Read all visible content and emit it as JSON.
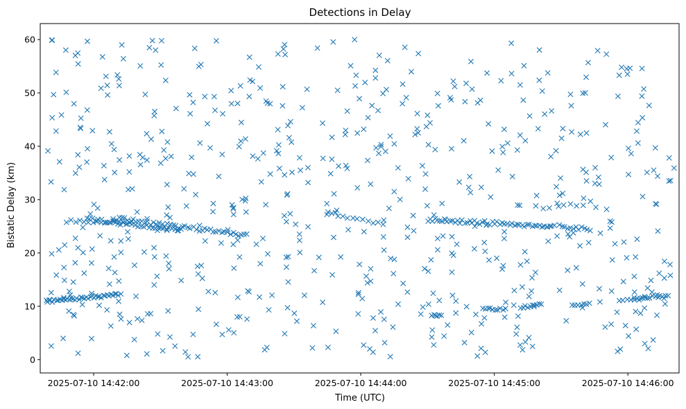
{
  "chart_data": {
    "type": "scatter",
    "title": "Detections in Delay",
    "xlabel": "Time (UTC)",
    "ylabel": "Bistatic Delay (km)",
    "marker": "x",
    "color": "#1f77b4",
    "grid": false,
    "x_range": [
      "2025-07-10 14:41:36",
      "2025-07-10 14:46:23"
    ],
    "ylim": [
      -2.5,
      63
    ],
    "x_ticks": [
      "2025-07-10 14:42:00",
      "2025-07-10 14:43:00",
      "2025-07-10 14:44:00",
      "2025-07-10 14:45:00",
      "2025-07-10 14:46:00"
    ],
    "y_ticks": [
      0,
      10,
      20,
      30,
      40,
      50,
      60
    ],
    "series": [
      {
        "tracks": [
          {
            "start": "2025-07-10 14:41:39",
            "end": "2025-07-10 14:42:12",
            "y0": 10.9,
            "y1": 12.2,
            "n": 40,
            "jitter": 0.25
          },
          {
            "start": "2025-07-10 14:41:48",
            "end": "2025-07-10 14:42:17",
            "y0": 26.0,
            "y1": 25.7,
            "n": 16,
            "jitter": 0.3
          },
          {
            "start": "2025-07-10 14:41:57",
            "end": "2025-07-10 14:42:39",
            "y0": 26.3,
            "y1": 24.3,
            "n": 34,
            "jitter": 0.3
          },
          {
            "start": "2025-07-10 14:42:09",
            "end": "2025-07-10 14:43:09",
            "y0": 26.5,
            "y1": 23.3,
            "n": 48,
            "jitter": 0.35
          },
          {
            "start": "2025-07-10 14:43:45",
            "end": "2025-07-10 14:44:10",
            "y0": 27.5,
            "y1": 25.6,
            "n": 12,
            "jitter": 0.4
          },
          {
            "start": "2025-07-10 14:44:32",
            "end": "2025-07-10 14:44:36",
            "y0": 8.3,
            "y1": 8.2,
            "n": 6,
            "jitter": 0.2
          },
          {
            "start": "2025-07-10 14:44:30",
            "end": "2025-07-10 14:45:27",
            "y0": 26.2,
            "y1": 25.0,
            "n": 52,
            "jitter": 0.35
          },
          {
            "start": "2025-07-10 14:44:55",
            "end": "2025-07-10 14:45:05",
            "y0": 9.6,
            "y1": 9.4,
            "n": 10,
            "jitter": 0.2
          },
          {
            "start": "2025-07-10 14:45:12",
            "end": "2025-07-10 14:45:21",
            "y0": 9.8,
            "y1": 10.3,
            "n": 10,
            "jitter": 0.2
          },
          {
            "start": "2025-07-10 14:45:22",
            "end": "2025-07-10 14:45:43",
            "y0": 28.7,
            "y1": 29.4,
            "n": 8,
            "jitter": 0.5
          },
          {
            "start": "2025-07-10 14:45:29",
            "end": "2025-07-10 14:45:43",
            "y0": 25.0,
            "y1": 24.4,
            "n": 12,
            "jitter": 0.3
          },
          {
            "start": "2025-07-10 14:45:35",
            "end": "2025-07-10 14:45:43",
            "y0": 10.3,
            "y1": 10.4,
            "n": 7,
            "jitter": 0.2
          },
          {
            "start": "2025-07-10 14:45:56",
            "end": "2025-07-10 14:46:05",
            "y0": 11.1,
            "y1": 11.1,
            "n": 6,
            "jitter": 0.2
          },
          {
            "start": "2025-07-10 14:46:03",
            "end": "2025-07-10 14:46:18",
            "y0": 11.6,
            "y1": 11.9,
            "n": 14,
            "jitter": 0.2
          }
        ],
        "noise": {
          "count": 640,
          "seed": 7,
          "y_range": [
            0.5,
            60
          ],
          "x_start": "2025-07-10 14:41:39",
          "x_end": "2025-07-10 14:46:21"
        }
      }
    ]
  }
}
